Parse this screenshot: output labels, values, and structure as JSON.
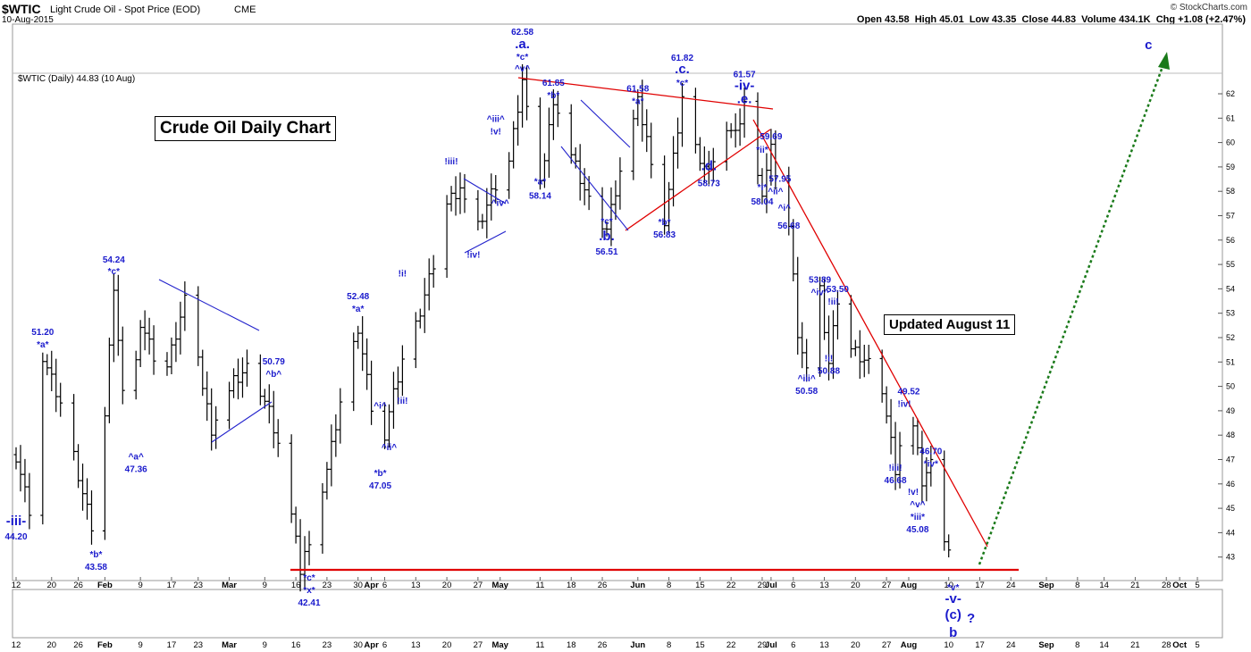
{
  "header": {
    "symbol": "$WTIC",
    "name": "Light Crude Oil - Spot Price (EOD)",
    "exchange": "CME",
    "date": "10-Aug-2015",
    "ohlc": "Open 43.58  High 45.01  Low 43.35  Close 44.83  Volume 434.1K  Chg +1.08 (+2.47%)",
    "brand": "© StockCharts.com",
    "legend": "$WTIC (Daily) 44.83 (10 Aug)"
  },
  "boxes": {
    "title": "Crude Oil Daily Chart",
    "updated": "Updated August 11"
  },
  "chart_data": {
    "type": "ohlc-bar",
    "title": "Crude Oil Daily Chart",
    "ylim": [
      42.3,
      62.8
    ],
    "y_ticks": [
      43,
      44,
      45,
      46,
      47,
      48,
      49,
      50,
      51,
      52,
      53,
      54,
      55,
      56,
      57,
      58,
      59,
      60,
      61,
      62
    ],
    "x_tick_labels": [
      {
        "d": 0,
        "t": "12"
      },
      {
        "d": 8,
        "t": "20"
      },
      {
        "d": 14,
        "t": "26"
      },
      {
        "d": 20,
        "t": "Feb"
      },
      {
        "d": 28,
        "t": "9"
      },
      {
        "d": 35,
        "t": "17"
      },
      {
        "d": 41,
        "t": "23"
      },
      {
        "d": 48,
        "t": "Mar"
      },
      {
        "d": 56,
        "t": "9"
      },
      {
        "d": 63,
        "t": "16"
      },
      {
        "d": 70,
        "t": "23"
      },
      {
        "d": 77,
        "t": "30"
      },
      {
        "d": 80,
        "t": "Apr"
      },
      {
        "d": 83,
        "t": "6"
      },
      {
        "d": 90,
        "t": "13"
      },
      {
        "d": 97,
        "t": "20"
      },
      {
        "d": 104,
        "t": "27"
      },
      {
        "d": 109,
        "t": "May"
      },
      {
        "d": 118,
        "t": "11"
      },
      {
        "d": 125,
        "t": "18"
      },
      {
        "d": 132,
        "t": "26"
      },
      {
        "d": 140,
        "t": "Jun"
      },
      {
        "d": 147,
        "t": "8"
      },
      {
        "d": 154,
        "t": "15"
      },
      {
        "d": 161,
        "t": "22"
      },
      {
        "d": 168,
        "t": "29"
      },
      {
        "d": 170,
        "t": "Jul"
      },
      {
        "d": 175,
        "t": "6"
      },
      {
        "d": 182,
        "t": "13"
      },
      {
        "d": 189,
        "t": "20"
      },
      {
        "d": 196,
        "t": "27"
      },
      {
        "d": 201,
        "t": "Aug"
      },
      {
        "d": 210,
        "t": "10"
      },
      {
        "d": 217,
        "t": "17"
      },
      {
        "d": 224,
        "t": "24"
      },
      {
        "d": 232,
        "t": "Sep"
      },
      {
        "d": 239,
        "t": "8"
      },
      {
        "d": 245,
        "t": "14"
      },
      {
        "d": 252,
        "t": "21"
      },
      {
        "d": 259,
        "t": "28"
      },
      {
        "d": 262,
        "t": "Oct"
      },
      {
        "d": 266,
        "t": "5"
      }
    ],
    "anchors": [
      [
        0,
        47.2
      ],
      [
        4,
        44.2
      ],
      [
        6,
        51.2
      ],
      [
        11,
        48.7
      ],
      [
        15,
        45.6
      ],
      [
        18,
        43.58
      ],
      [
        22,
        54.24
      ],
      [
        25,
        47.36
      ],
      [
        28,
        52.6
      ],
      [
        33,
        50.2
      ],
      [
        38,
        53.5
      ],
      [
        44,
        48.3
      ],
      [
        49,
        50.2
      ],
      [
        53,
        50.79
      ],
      [
        57,
        49.0
      ],
      [
        60,
        47.0
      ],
      [
        64,
        42.41
      ],
      [
        70,
        46.6
      ],
      [
        74,
        50.2
      ],
      [
        77,
        52.48
      ],
      [
        82,
        47.05
      ],
      [
        84,
        48.9
      ],
      [
        87,
        51.0
      ],
      [
        90,
        52.5
      ],
      [
        94,
        55.0
      ],
      [
        97,
        57.6
      ],
      [
        100,
        58.2
      ],
      [
        103,
        56.1
      ],
      [
        107,
        57.8
      ],
      [
        111,
        59.3
      ],
      [
        114,
        62.58
      ],
      [
        116,
        59.9
      ],
      [
        118,
        58.14
      ],
      [
        121,
        61.85
      ],
      [
        125,
        59.5
      ],
      [
        129,
        57.5
      ],
      [
        133,
        56.51
      ],
      [
        137,
        59.6
      ],
      [
        140,
        61.58
      ],
      [
        143,
        59.4
      ],
      [
        146,
        56.83
      ],
      [
        150,
        61.82
      ],
      [
        153,
        59.8
      ],
      [
        156,
        58.73
      ],
      [
        159,
        60.9
      ],
      [
        162,
        60.2
      ],
      [
        164,
        61.57
      ],
      [
        166,
        58.9
      ],
      [
        168,
        58.04
      ],
      [
        170,
        59.69
      ],
      [
        172,
        57.95
      ],
      [
        174,
        56.68
      ],
      [
        176,
        52.3
      ],
      [
        178,
        50.58
      ],
      [
        181,
        53.89
      ],
      [
        183,
        50.88
      ],
      [
        185,
        53.5
      ],
      [
        188,
        51.6
      ],
      [
        192,
        50.9
      ],
      [
        196,
        48.9
      ],
      [
        198,
        46.68
      ],
      [
        201,
        49.52
      ],
      [
        204,
        46.1
      ],
      [
        206,
        46.7
      ],
      [
        207,
        45.08
      ],
      [
        210,
        43.35
      ]
    ],
    "wave_labels": [
      {
        "d": 0,
        "p": 44.2,
        "dy": -3,
        "t": "-iii-",
        "big": true
      },
      {
        "d": 0,
        "p": 44.2,
        "dy": 13,
        "t": "44.20"
      },
      {
        "d": 6,
        "p": 51.2,
        "dy": -25,
        "t": "51.20"
      },
      {
        "d": 6,
        "p": 51.2,
        "dy": -11,
        "t": "*a*"
      },
      {
        "d": 18,
        "p": 43.58,
        "dy": 16,
        "t": "*b*"
      },
      {
        "d": 18,
        "p": 43.58,
        "dy": 30,
        "t": "43.58"
      },
      {
        "d": 22,
        "p": 54.24,
        "dy": -23,
        "t": "54.24"
      },
      {
        "d": 22,
        "p": 54.24,
        "dy": -10,
        "t": "*c*"
      },
      {
        "d": 27,
        "p": 47.36,
        "dy": 10,
        "t": "^a^"
      },
      {
        "d": 27,
        "p": 47.36,
        "dy": 24,
        "t": "47.36"
      },
      {
        "d": 58,
        "p": 50.79,
        "dy": -3,
        "t": "50.79"
      },
      {
        "d": 58,
        "p": 50.79,
        "dy": 11,
        "t": "^b^"
      },
      {
        "d": 66,
        "p": 42.41,
        "dy": 10,
        "t": "*c*"
      },
      {
        "d": 66,
        "p": 42.41,
        "dy": 24,
        "t": "*x*"
      },
      {
        "d": 66,
        "p": 42.41,
        "dy": 38,
        "t": "42.41"
      },
      {
        "d": 77,
        "p": 52.48,
        "dy": -30,
        "t": "52.48"
      },
      {
        "d": 77,
        "p": 52.48,
        "dy": -16,
        "t": "*a*"
      },
      {
        "d": 82,
        "p": 48.8,
        "dy": -8,
        "t": "^i^"
      },
      {
        "d": 84,
        "p": 47.6,
        "dy": 6,
        "t": "^ii^"
      },
      {
        "d": 82,
        "p": 47.05,
        "dy": 20,
        "t": "*b*"
      },
      {
        "d": 82,
        "p": 47.05,
        "dy": 34,
        "t": "47.05"
      },
      {
        "d": 87,
        "p": 54.0,
        "dy": -14,
        "t": "!i!"
      },
      {
        "d": 87,
        "p": 50.1,
        "dy": 22,
        "t": "!ii!"
      },
      {
        "d": 98,
        "p": 58.3,
        "dy": -22,
        "t": "!iii!"
      },
      {
        "d": 103,
        "p": 55.8,
        "dy": 14,
        "t": "!iv!"
      },
      {
        "d": 108,
        "p": 59.3,
        "dy": -42,
        "t": "^iii^"
      },
      {
        "d": 108,
        "p": 59.3,
        "dy": -28,
        "t": "!v!"
      },
      {
        "d": 109,
        "p": 57.7,
        "dy": 8,
        "t": "^iv^"
      },
      {
        "d": 114,
        "p": 62.58,
        "dy": -50,
        "t": "62.58"
      },
      {
        "d": 114,
        "p": 62.58,
        "dy": -35,
        "t": ".a.",
        "big": true
      },
      {
        "d": 114,
        "p": 62.58,
        "dy": -22,
        "t": "*c*"
      },
      {
        "d": 114,
        "p": 62.58,
        "dy": -9,
        "t": "^v^"
      },
      {
        "d": 118,
        "p": 58.14,
        "dy": -4,
        "t": "*a*"
      },
      {
        "d": 118,
        "p": 58.14,
        "dy": 12,
        "t": "58.14"
      },
      {
        "d": 121,
        "p": 61.85,
        "dy": -13,
        "t": "61.85"
      },
      {
        "d": 121,
        "p": 61.85,
        "dy": 1,
        "t": "*b*"
      },
      {
        "d": 133,
        "p": 56.51,
        "dy": -4,
        "t": "*c*"
      },
      {
        "d": 133,
        "p": 56.51,
        "dy": 14,
        "t": ".b.",
        "big": true
      },
      {
        "d": 133,
        "p": 56.51,
        "dy": 30,
        "t": "56.51"
      },
      {
        "d": 140,
        "p": 61.58,
        "dy": -14,
        "t": "61.58"
      },
      {
        "d": 140,
        "p": 61.58,
        "dy": 0,
        "t": "*a*"
      },
      {
        "d": 146,
        "p": 56.83,
        "dy": 6,
        "t": "*b*"
      },
      {
        "d": 146,
        "p": 56.83,
        "dy": 20,
        "t": "56.83"
      },
      {
        "d": 150,
        "p": 61.82,
        "dy": -42,
        "t": "61.82"
      },
      {
        "d": 150,
        "p": 61.82,
        "dy": -28,
        "t": ".c.",
        "big": true
      },
      {
        "d": 150,
        "p": 61.82,
        "dy": -14,
        "t": "*c*"
      },
      {
        "d": 156,
        "p": 58.73,
        "dy": -4,
        "t": ".d.",
        "big": true
      },
      {
        "d": 156,
        "p": 58.73,
        "dy": 14,
        "t": "58.73"
      },
      {
        "d": 164,
        "p": 61.57,
        "dy": -30,
        "t": "61.57"
      },
      {
        "d": 164,
        "p": 61.57,
        "dy": -16,
        "t": "-iv-",
        "big": true
      },
      {
        "d": 164,
        "p": 61.57,
        "dy": -1,
        "t": ".e.",
        "big": true
      },
      {
        "d": 170,
        "p": 59.69,
        "dy": -12,
        "t": "59.69"
      },
      {
        "d": 168,
        "p": 59.69,
        "dy": 3,
        "t": "*ii*"
      },
      {
        "d": 172,
        "p": 57.95,
        "dy": -12,
        "t": "57.95"
      },
      {
        "d": 171,
        "p": 57.95,
        "dy": 2,
        "t": "^ii^"
      },
      {
        "d": 168,
        "p": 58.04,
        "dy": 0,
        "t": "*i*"
      },
      {
        "d": 168,
        "p": 58.04,
        "dy": 16,
        "t": "58.04"
      },
      {
        "d": 173,
        "p": 56.68,
        "dy": -14,
        "t": "^i^"
      },
      {
        "d": 174,
        "p": 56.68,
        "dy": 6,
        "t": "56.68"
      },
      {
        "d": 181,
        "p": 53.89,
        "dy": -10,
        "t": "53.89"
      },
      {
        "d": 181,
        "p": 53.89,
        "dy": 4,
        "t": "^iv^"
      },
      {
        "d": 185,
        "p": 53.5,
        "dy": -10,
        "t": "53.50"
      },
      {
        "d": 184,
        "p": 53.5,
        "dy": 4,
        "t": "!ii!"
      },
      {
        "d": 178,
        "p": 50.58,
        "dy": 10,
        "t": "^iii^"
      },
      {
        "d": 178,
        "p": 50.58,
        "dy": 24,
        "t": "50.58"
      },
      {
        "d": 183,
        "p": 50.88,
        "dy": -4,
        "t": "!i!"
      },
      {
        "d": 183,
        "p": 50.88,
        "dy": 10,
        "t": "50.88"
      },
      {
        "d": 201,
        "p": 49.52,
        "dy": -4,
        "t": "49.52"
      },
      {
        "d": 200,
        "p": 49.52,
        "dy": 10,
        "t": "!iv!"
      },
      {
        "d": 198,
        "p": 46.68,
        "dy": 4,
        "t": "!iii!"
      },
      {
        "d": 198,
        "p": 46.68,
        "dy": 18,
        "t": "46.68"
      },
      {
        "d": 206,
        "p": 46.7,
        "dy": -14,
        "t": "46.70"
      },
      {
        "d": 206,
        "p": 46.7,
        "dy": 0,
        "t": "*iv*"
      },
      {
        "d": 202,
        "p": 45.08,
        "dy": -13,
        "t": "!v!"
      },
      {
        "d": 203,
        "p": 45.08,
        "dy": 1,
        "t": "^v^"
      },
      {
        "d": 203,
        "p": 45.08,
        "dy": 15,
        "t": "*iii*"
      },
      {
        "d": 203,
        "p": 45.08,
        "dy": 29,
        "t": "45.08"
      },
      {
        "d": 211,
        "p": 42.3,
        "dy": 18,
        "t": "*v*"
      },
      {
        "d": 211,
        "p": 42.3,
        "dy": 32,
        "t": "-v-",
        "big": true
      },
      {
        "d": 211,
        "p": 42.3,
        "dy": 50,
        "t": "(c)",
        "big": true
      },
      {
        "d": 215,
        "p": 42.3,
        "dy": 54,
        "t": "?",
        "big": true
      },
      {
        "d": 211,
        "p": 42.3,
        "dy": 70,
        "t": "b",
        "big": true
      },
      {
        "d": 255,
        "p": 62.8,
        "dy": -28,
        "t": "c",
        "big": true
      }
    ]
  }
}
